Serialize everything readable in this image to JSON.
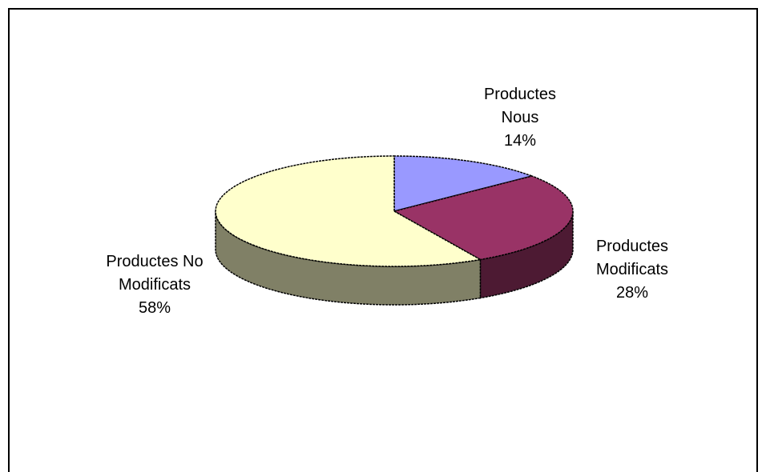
{
  "chart_data": {
    "type": "pie",
    "style": "3d",
    "title": "",
    "legend": "none",
    "slices": [
      {
        "label_line1": "Productes",
        "label_line2": "Nous",
        "percent_label": "14%",
        "value": 14,
        "color": "#9999ff",
        "side_color": "#5c5c99"
      },
      {
        "label_line1": "Productes",
        "label_line2": "Modificats",
        "percent_label": "28%",
        "value": 28,
        "color": "#993366",
        "side_color": "#4d1a33"
      },
      {
        "label_line1": "Productes No",
        "label_line2": "Modificats",
        "percent_label": "58%",
        "value": 58,
        "color": "#ffffcc",
        "side_color": "#808066"
      }
    ]
  }
}
